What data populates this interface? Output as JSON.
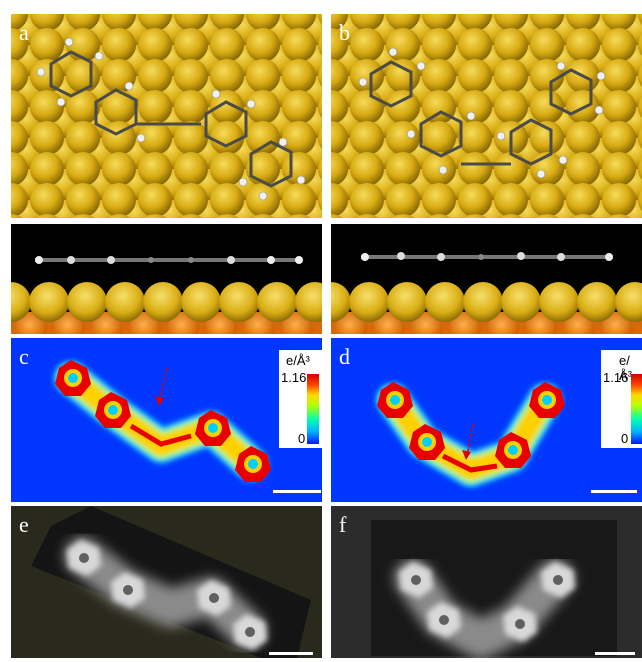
{
  "panels": {
    "a": {
      "label": "a"
    },
    "b": {
      "label": "b"
    },
    "c": {
      "label": "c",
      "colorbar": {
        "unit": "e/Å³",
        "max": "1.16",
        "min": "0"
      }
    },
    "d": {
      "label": "d",
      "colorbar": {
        "unit": "e/Å³",
        "max": "1.16",
        "min": "0"
      }
    },
    "e": {
      "label": "e"
    },
    "f": {
      "label": "f"
    }
  },
  "colors": {
    "gold": "#d4a814",
    "substrate_orange": "#e07a10",
    "density_background": "#0038ff",
    "arrow_red": "#e00000"
  }
}
